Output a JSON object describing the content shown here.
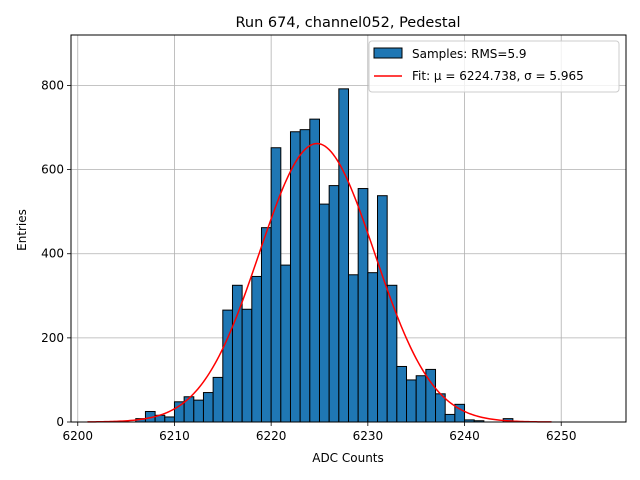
{
  "chart_data": {
    "type": "bar",
    "title": "Run 674, channel052, Pedestal",
    "xlabel": "ADC Counts",
    "ylabel": "Entries",
    "xlim": [
      6199.3,
      6256.7
    ],
    "ylim": [
      0,
      920
    ],
    "xticks": [
      6200,
      6210,
      6220,
      6230,
      6240,
      6250
    ],
    "yticks": [
      0,
      200,
      400,
      600,
      800
    ],
    "grid": true,
    "legend_position": "top-right",
    "bar_color": "#1f77b4",
    "fit_color": "#ff0000",
    "histogram": {
      "name": "Samples: RMS=5.9",
      "bin_width": 1,
      "bin_starts": [
        6206,
        6207,
        6208,
        6209,
        6210,
        6211,
        6212,
        6213,
        6214,
        6215,
        6216,
        6217,
        6218,
        6219,
        6220,
        6221,
        6222,
        6223,
        6224,
        6225,
        6226,
        6227,
        6228,
        6229,
        6230,
        6231,
        6232,
        6233,
        6234,
        6235,
        6236,
        6237,
        6238,
        6239,
        6240,
        6241,
        6242,
        6243,
        6244,
        6245
      ],
      "counts": [
        8,
        25,
        16,
        12,
        48,
        60,
        52,
        70,
        106,
        266,
        325,
        268,
        346,
        462,
        652,
        373,
        690,
        695,
        720,
        518,
        562,
        792,
        350,
        555,
        355,
        538,
        325,
        132,
        100,
        110,
        125,
        67,
        18,
        42,
        5,
        3,
        0,
        0,
        8,
        0
      ]
    },
    "fit": {
      "name": "Fit: μ = 6224.738, σ = 5.965",
      "mu": 6224.738,
      "sigma": 5.965,
      "peak": 662,
      "x_range": [
        6201,
        6249
      ]
    }
  }
}
